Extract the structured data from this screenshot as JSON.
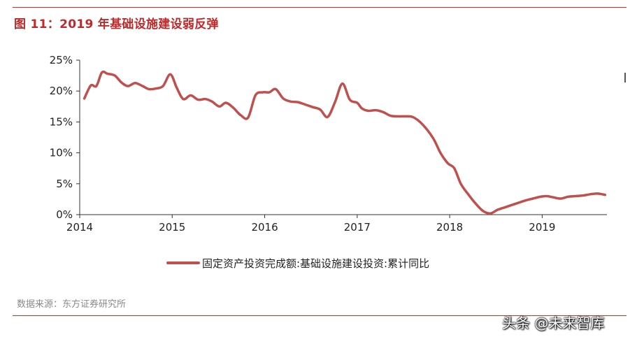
{
  "title": "图 11：2019 年基础设施建设弱反弹",
  "source": "数据来源：东方证券研究所",
  "watermark": "头条 @未来智库",
  "colors": {
    "line": "#c0504d",
    "accent": "#c9302c",
    "axis": "#333333"
  },
  "chart_data": {
    "type": "line",
    "title": "图 11：2019 年基础设施建设弱反弹",
    "xlabel": "",
    "ylabel": "",
    "ylim": [
      0,
      25
    ],
    "xlim": [
      2014.0,
      2019.7
    ],
    "yticks": [
      "0%",
      "5%",
      "10%",
      "15%",
      "20%",
      "25%"
    ],
    "ytick_values": [
      0,
      5,
      10,
      15,
      20,
      25
    ],
    "xticks": [
      "2014",
      "2015",
      "2016",
      "2017",
      "2018",
      "2019"
    ],
    "xtick_values": [
      2014,
      2015,
      2016,
      2017,
      2018,
      2019
    ],
    "grid": false,
    "legend": "bottom",
    "series": [
      {
        "name": "固定资产投资完成额:基础设施建设投资:累计同比",
        "x": [
          2014.05,
          2014.12,
          2014.18,
          2014.24,
          2014.3,
          2014.38,
          2014.45,
          2014.52,
          2014.6,
          2014.68,
          2014.75,
          2014.82,
          2014.9,
          2014.98,
          2015.05,
          2015.12,
          2015.2,
          2015.28,
          2015.36,
          2015.43,
          2015.51,
          2015.58,
          2015.66,
          2015.74,
          2015.82,
          2015.9,
          2015.98,
          2016.05,
          2016.12,
          2016.2,
          2016.28,
          2016.36,
          2016.44,
          2016.52,
          2016.6,
          2016.68,
          2016.76,
          2016.84,
          2016.92,
          2017.0,
          2017.05,
          2017.12,
          2017.2,
          2017.28,
          2017.36,
          2017.44,
          2017.52,
          2017.6,
          2017.7,
          2017.82,
          2017.9,
          2017.98,
          2018.05,
          2018.12,
          2018.2,
          2018.28,
          2018.36,
          2018.44,
          2018.52,
          2018.6,
          2018.66,
          2018.74,
          2018.82,
          2018.9,
          2018.98,
          2019.05,
          2019.12,
          2019.2,
          2019.28,
          2019.36,
          2019.44,
          2019.52,
          2019.6,
          2019.68
        ],
        "values": [
          18.8,
          20.9,
          20.8,
          23.0,
          22.8,
          22.5,
          21.4,
          20.8,
          21.3,
          20.8,
          20.3,
          20.4,
          20.8,
          22.7,
          20.5,
          18.7,
          19.3,
          18.6,
          18.7,
          18.3,
          17.5,
          18.1,
          17.3,
          16.1,
          15.7,
          19.3,
          19.8,
          19.8,
          20.3,
          18.8,
          18.3,
          18.2,
          17.8,
          17.4,
          17.0,
          15.8,
          18.2,
          21.2,
          18.6,
          18.1,
          17.2,
          16.8,
          16.9,
          16.6,
          16.0,
          15.9,
          15.9,
          15.8,
          14.7,
          12.4,
          10.0,
          8.3,
          7.5,
          5.0,
          3.3,
          1.8,
          0.6,
          0.2,
          0.8,
          1.2,
          1.5,
          1.9,
          2.3,
          2.6,
          2.9,
          3.0,
          2.8,
          2.6,
          2.9,
          3.0,
          3.1,
          3.3,
          3.4,
          3.2
        ]
      }
    ]
  }
}
